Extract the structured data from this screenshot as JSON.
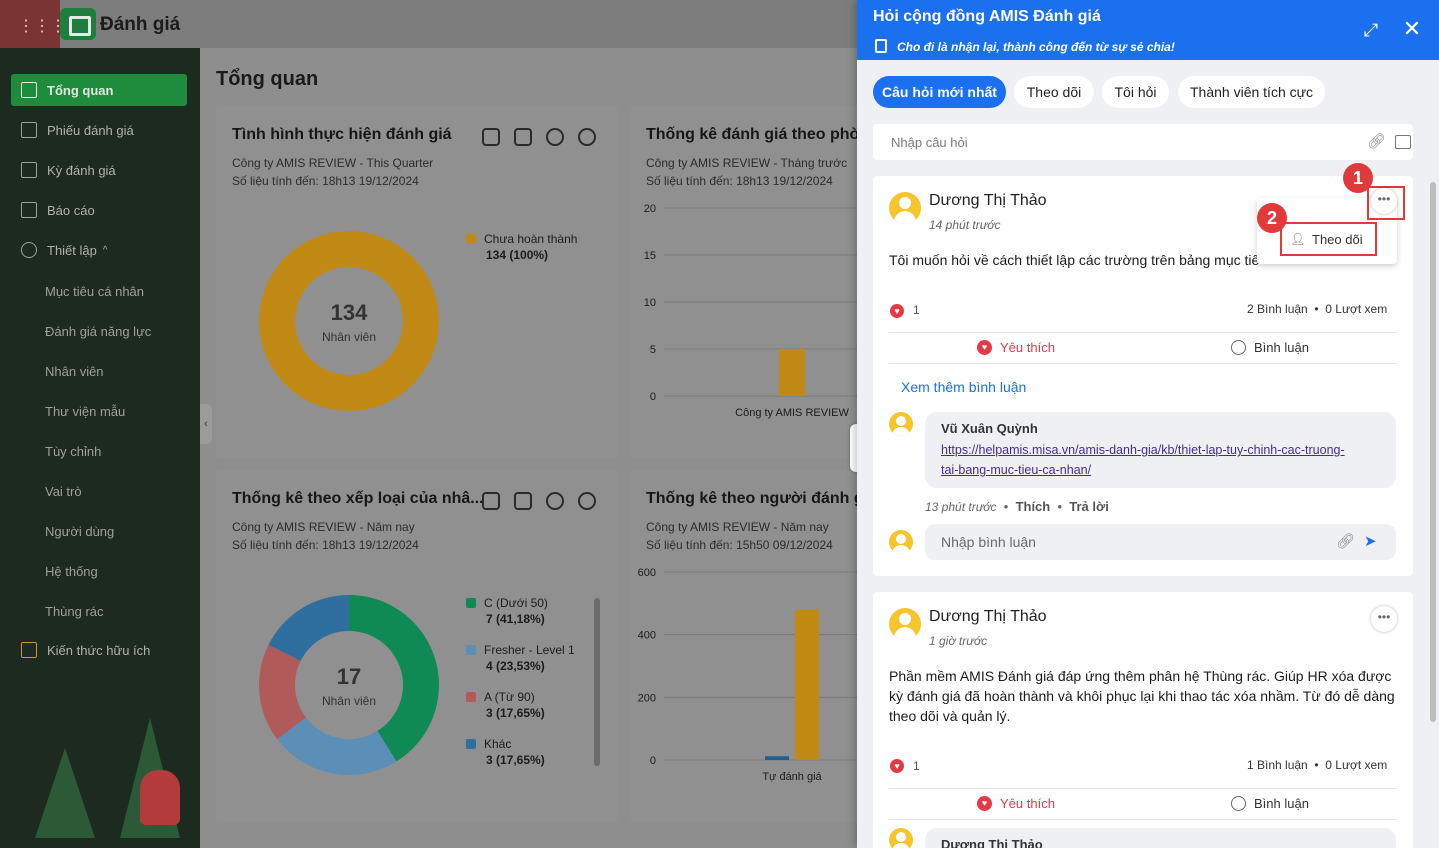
{
  "app": {
    "title": "Đánh giá"
  },
  "sidebar": {
    "items": [
      {
        "label": "Tổng quan"
      },
      {
        "label": "Phiếu đánh giá"
      },
      {
        "label": "Kỳ đánh giá"
      },
      {
        "label": "Báo cáo"
      },
      {
        "label": "Thiết lập"
      }
    ],
    "sub_items": [
      "Mục tiêu cá nhân",
      "Đánh giá năng lực",
      "Nhân viên",
      "Thư viện mẫu",
      "Tùy chỉnh",
      "Vai trò",
      "Người dùng",
      "Hệ thống",
      "Thùng rác"
    ],
    "knowledge": "Kiến thức hữu ích"
  },
  "page": {
    "title": "Tổng quan"
  },
  "cards": [
    {
      "title": "Tình hình thực hiện đánh giá",
      "subtitle": "Công ty AMIS REVIEW - This Quarter",
      "updated": "Số liệu tính đến: 18h13 19/12/2024",
      "center_value": "134",
      "center_label": "Nhân viên"
    },
    {
      "title": "Thống kê đánh giá theo phòn",
      "subtitle": "Công ty AMIS REVIEW - Tháng trước",
      "updated": "Số liệu tính đến: 18h13 19/12/2024"
    },
    {
      "title": "Thống kê theo xếp loại của nhâ...",
      "subtitle": "Công ty AMIS REVIEW - Năm nay",
      "updated": "Số liệu tính đến: 18h13 19/12/2024",
      "center_value": "17",
      "center_label": "Nhân viên"
    },
    {
      "title": "Thống kê theo người đánh giá",
      "subtitle": "Công ty AMIS REVIEW - Năm nay",
      "updated": "Số liệu tính đến: 15h50 09/12/2024"
    }
  ],
  "chart_data": [
    {
      "type": "pie",
      "labels": [
        "Chưa hoàn thành"
      ],
      "values": [
        134
      ],
      "value_labels": [
        "134 (100%)"
      ],
      "colors": [
        "#c08a15"
      ]
    },
    {
      "type": "bar",
      "categories": [
        "Công ty AMIS REVIEW"
      ],
      "values": [
        5
      ],
      "ylim": [
        0,
        20
      ],
      "yticks": [
        "20",
        "15",
        "10",
        "5",
        "0"
      ]
    },
    {
      "type": "pie",
      "labels": [
        "C (Dưới 50)",
        "Fresher - Level 1",
        "A (Từ 90)",
        "Khác"
      ],
      "values": [
        7,
        4,
        3,
        3
      ],
      "value_labels": [
        "7 (41,18%)",
        "4 (23,53%)",
        "3 (17,65%)",
        "3 (17,65%)"
      ],
      "colors": [
        "#0f8a55",
        "#5b8fb8",
        "#b05a5a",
        "#2f6f9f"
      ]
    },
    {
      "type": "bar",
      "categories": [
        "Tự đánh giá"
      ],
      "series": [
        {
          "values": [
            12
          ],
          "color": "#1f5f93"
        },
        {
          "values": [
            480
          ],
          "color": "#c08a15"
        }
      ],
      "ylim": [
        0,
        600
      ],
      "yticks": [
        "600",
        "400",
        "200",
        "0"
      ]
    }
  ],
  "panel": {
    "title": "Hỏi cộng đồng AMIS Đánh giá",
    "slogan": "Cho đi là nhận lại, thành công đến từ sự sẻ chia!",
    "tabs": [
      "Câu hỏi mới nhất",
      "Theo dõi",
      "Tôi hỏi",
      "Thành viên tích cực"
    ],
    "question_placeholder": "Nhập câu hỏi",
    "posts": [
      {
        "author": "Dương Thị Thảo",
        "time": "14 phút trước",
        "text": "Tôi muốn hỏi về cách thiết lập các trường trên bảng mục tiê",
        "likes": "1",
        "comments": "2 Bình luận",
        "views": "0 Lượt xem",
        "like_label": "Yêu thích",
        "comment_label": "Bình luận",
        "see_more": "Xem thêm bình luận",
        "menu_follow": "Theo dõi",
        "comment": {
          "author": "Vũ Xuân Quỳnh",
          "link_line1": "https://helpamis.misa.vn/amis-danh-gia/kb/thiet-lap-tuy-chinh-cac-truong-",
          "link_line2": "tai-bang-muc-tieu-ca-nhan/",
          "time": "13 phút trước",
          "like": "Thích",
          "reply": "Trả lời"
        },
        "reply_placeholder": "Nhập bình luận"
      },
      {
        "author": "Dương Thị Thảo",
        "time": "1 giờ trước",
        "text_lines": [
          "Phần mềm AMIS Đánh giá đáp ứng thêm phân hệ Thùng rác. Giúp HR xóa được",
          "kỳ đánh giá đã hoàn thành và khôi phục lại khi thao tác xóa nhầm. Từ đó dễ dàng",
          "theo dõi và quản lý."
        ],
        "likes": "1",
        "comments": "1 Bình luận",
        "views": "0 Lượt xem",
        "like_label": "Yêu thích",
        "comment_label": "Bình luận",
        "next_comment_author": "Dương Thị Thảo"
      }
    ],
    "steps": [
      "1",
      "2"
    ],
    "colors": {
      "primary": "#1a70ef",
      "highlight": "#e03b3b",
      "like": "#e53945"
    }
  }
}
